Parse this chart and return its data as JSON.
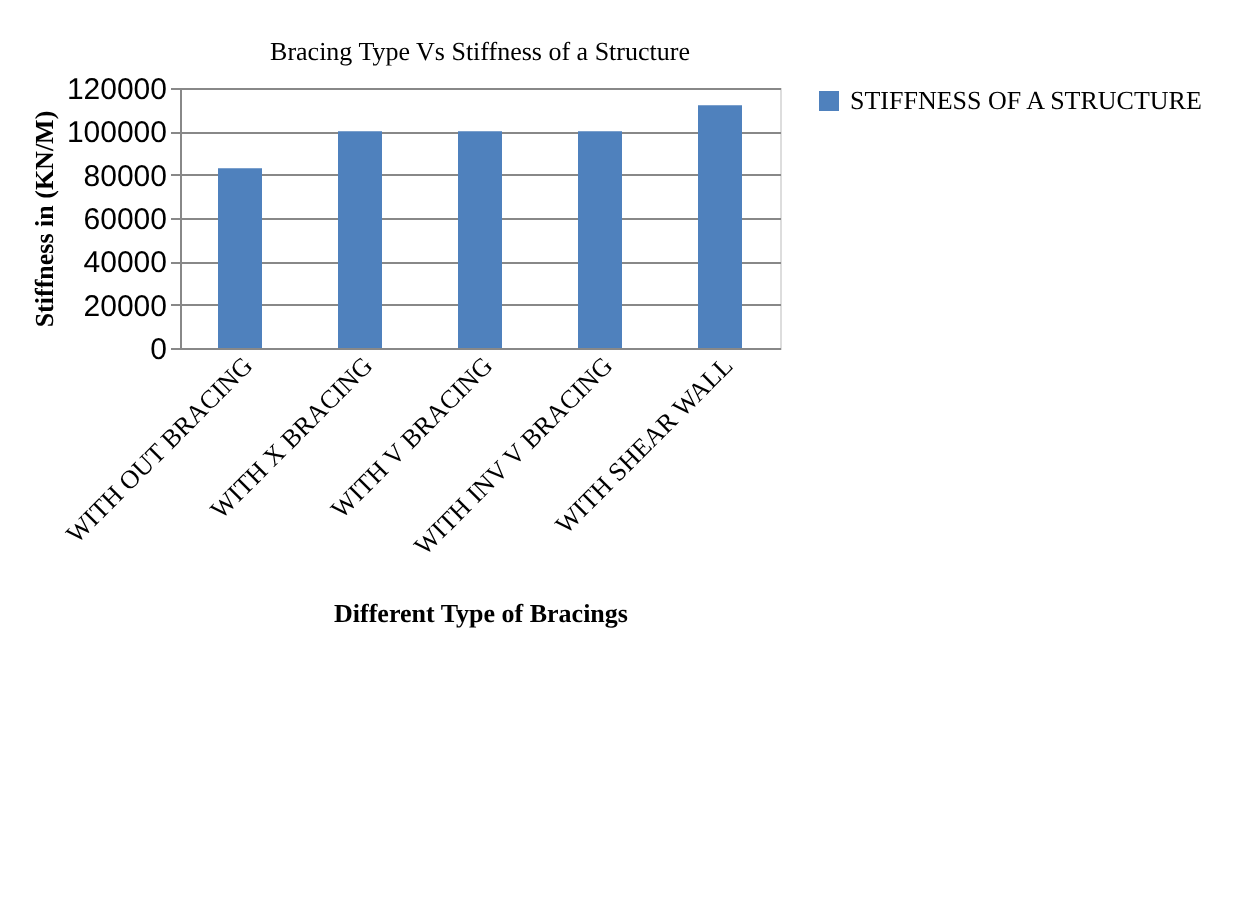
{
  "chart_data": {
    "type": "bar",
    "title": "Bracing Type Vs Stiffness of a Structure",
    "xlabel": "Different Type of Bracings",
    "ylabel": "Stiffness in (KN/M)",
    "categories": [
      "WITH OUT BRACING",
      "WITH X BRACING",
      "WITH V BRACING",
      "WITH INV V BRACING",
      "WITH SHEAR WALL"
    ],
    "series": [
      {
        "name": "STIFFNESS OF A STRUCTURE",
        "color": "#4f81bd",
        "values": [
          83000,
          100000,
          100000,
          100000,
          112000
        ]
      }
    ],
    "ylim": [
      0,
      120000
    ],
    "yticks": [
      0,
      20000,
      40000,
      60000,
      80000,
      100000,
      120000
    ],
    "grid": "y",
    "legend": "right"
  }
}
